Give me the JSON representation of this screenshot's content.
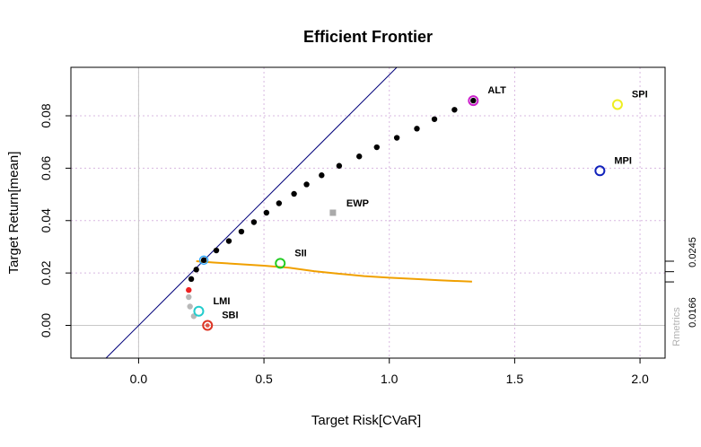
{
  "chart_data": {
    "type": "scatter",
    "title": "Efficient Frontier",
    "xlabel": "Target Risk[CVaR]",
    "ylabel": "Target Return[mean]",
    "xlim": [
      -0.27,
      2.1
    ],
    "ylim": [
      -0.0125,
      0.0985
    ],
    "x_ticks": [
      0.0,
      0.5,
      1.0,
      1.5,
      2.0
    ],
    "x_tick_labels": [
      "0.0",
      "0.5",
      "1.0",
      "1.5",
      "2.0"
    ],
    "y_ticks": [
      0.0,
      0.02,
      0.04,
      0.06,
      0.08
    ],
    "y_tick_labels": [
      "0.00",
      "0.02",
      "0.04",
      "0.06",
      "0.08"
    ],
    "grid": true,
    "frontier": {
      "color": "#000000",
      "points": [
        [
          0.21,
          0.0177
        ],
        [
          0.23,
          0.0213
        ],
        [
          0.26,
          0.0249
        ],
        [
          0.31,
          0.0286
        ],
        [
          0.36,
          0.0322
        ],
        [
          0.41,
          0.0358
        ],
        [
          0.46,
          0.0394
        ],
        [
          0.51,
          0.043
        ],
        [
          0.56,
          0.0466
        ],
        [
          0.62,
          0.0502
        ],
        [
          0.67,
          0.0538
        ],
        [
          0.73,
          0.0573
        ],
        [
          0.8,
          0.0609
        ],
        [
          0.88,
          0.0645
        ],
        [
          0.95,
          0.068
        ],
        [
          1.03,
          0.0716
        ],
        [
          1.11,
          0.0751
        ],
        [
          1.18,
          0.0787
        ],
        [
          1.26,
          0.0823
        ],
        [
          1.335,
          0.0858
        ]
      ]
    },
    "min_variance_points": {
      "points": [
        [
          0.2,
          0.0135
        ],
        [
          0.2,
          0.0108
        ],
        [
          0.205,
          0.0072
        ],
        [
          0.22,
          0.0035
        ]
      ],
      "colors": [
        "#ee2222",
        "#b8b8b8",
        "#b8b8b8",
        "#b8b8b8"
      ]
    },
    "tangency_line": {
      "color": "#00007a",
      "points": [
        [
          -0.13,
          -0.0125
        ],
        [
          1.03,
          0.0985
        ]
      ]
    },
    "tangency_portfolio": {
      "x": 0.26,
      "y": 0.0249,
      "color": "#33aaff"
    },
    "tangency_curve": {
      "color": "#f0a000",
      "points": [
        [
          0.23,
          0.0245
        ],
        [
          0.3,
          0.024
        ],
        [
          0.4,
          0.0234
        ],
        [
          0.5,
          0.0228
        ],
        [
          0.6,
          0.022
        ],
        [
          0.7,
          0.0207
        ],
        [
          0.8,
          0.0197
        ],
        [
          0.9,
          0.0188
        ],
        [
          1.0,
          0.0182
        ],
        [
          1.1,
          0.0177
        ],
        [
          1.2,
          0.0172
        ],
        [
          1.33,
          0.0167
        ]
      ]
    },
    "assets": [
      {
        "name": "SBI",
        "x": 0.275,
        "y": 0.0,
        "color": "#dd3322"
      },
      {
        "name": "SPI",
        "x": 1.91,
        "y": 0.0843,
        "color": "#eeee22"
      },
      {
        "name": "SII",
        "x": 0.565,
        "y": 0.0237,
        "color": "#22cc22"
      },
      {
        "name": "LMI",
        "x": 0.24,
        "y": 0.0054,
        "color": "#22cccc"
      },
      {
        "name": "MPI",
        "x": 1.84,
        "y": 0.059,
        "color": "#1122bb"
      },
      {
        "name": "ALT",
        "x": 1.335,
        "y": 0.0858,
        "color": "#cc22cc"
      }
    ],
    "equal_weights": {
      "name": "EWP",
      "x": 0.775,
      "y": 0.043,
      "color": "#aaaaaa"
    },
    "right_axis": {
      "ticks": [
        0.0166,
        0.0205,
        0.0245
      ],
      "labels": [
        "0.0166",
        "0.0245"
      ],
      "label_values": [
        0.0166,
        0.0245
      ]
    },
    "watermark": "Rmetrics"
  }
}
